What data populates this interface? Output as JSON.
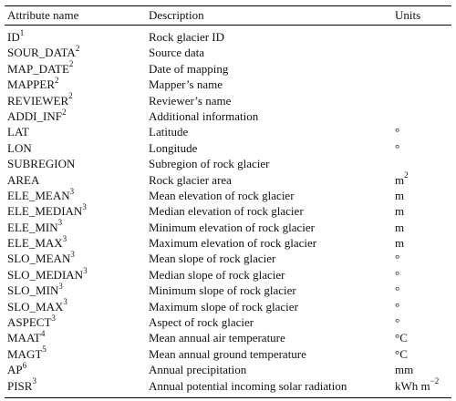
{
  "table": {
    "headers": [
      "Attribute name",
      "Description",
      "Units"
    ],
    "rows": [
      {
        "name": "ID",
        "sup": "1",
        "desc": "Rock glacier ID",
        "unit": ""
      },
      {
        "name": "SOUR_DATA",
        "sup": "2",
        "desc": "Source data",
        "unit": ""
      },
      {
        "name": "MAP_DATE",
        "sup": "2",
        "desc": "Date of mapping",
        "unit": ""
      },
      {
        "name": "MAPPER",
        "sup": "2",
        "desc": "Mapper’s name",
        "unit": ""
      },
      {
        "name": "REVIEWER",
        "sup": "2",
        "desc": "Reviewer’s name",
        "unit": ""
      },
      {
        "name": "ADDI_INF",
        "sup": "2",
        "desc": "Additional information",
        "unit": ""
      },
      {
        "name": "LAT",
        "sup": "",
        "desc": "Latitude",
        "unit": "°"
      },
      {
        "name": "LON",
        "sup": "",
        "desc": "Longitude",
        "unit": "°"
      },
      {
        "name": "SUBREGION",
        "sup": "",
        "desc": "Subregion of rock glacier",
        "unit": ""
      },
      {
        "name": "AREA",
        "sup": "",
        "desc": "Rock glacier area",
        "unit": "m",
        "unit_sup": "2"
      },
      {
        "name": "ELE_MEAN",
        "sup": "3",
        "desc": "Mean elevation of rock glacier",
        "unit": "m"
      },
      {
        "name": "ELE_MEDIAN",
        "sup": "3",
        "desc": "Median elevation of rock glacier",
        "unit": "m"
      },
      {
        "name": "ELE_MIN",
        "sup": "3",
        "desc": "Minimum elevation of rock glacier",
        "unit": "m"
      },
      {
        "name": "ELE_MAX",
        "sup": "3",
        "desc": "Maximum elevation of rock glacier",
        "unit": "m"
      },
      {
        "name": "SLO_MEAN",
        "sup": "3",
        "desc": "Mean slope of rock glacier",
        "unit": "°"
      },
      {
        "name": "SLO_MEDIAN",
        "sup": "3",
        "desc": "Median slope of rock glacier",
        "unit": "°"
      },
      {
        "name": "SLO_MIN",
        "sup": "3",
        "desc": "Minimum slope of rock glacier",
        "unit": "°"
      },
      {
        "name": "SLO_MAX",
        "sup": "3",
        "desc": "Maximum slope of rock glacier",
        "unit": "°"
      },
      {
        "name": "ASPECT",
        "sup": "3",
        "desc": "Aspect of rock glacier",
        "unit": "°"
      },
      {
        "name": "MAAT",
        "sup": "4",
        "desc": "Mean annual air temperature",
        "unit": "°C"
      },
      {
        "name": "MAGT",
        "sup": "5",
        "desc": "Mean annual ground temperature",
        "unit": "°C"
      },
      {
        "name": "AP",
        "sup": "6",
        "desc": "Annual precipitation",
        "unit": "mm"
      },
      {
        "name": "PISR",
        "sup": "3",
        "desc": "Annual potential incoming solar radiation",
        "unit": "kWh m",
        "unit_sup": "−2"
      }
    ]
  }
}
